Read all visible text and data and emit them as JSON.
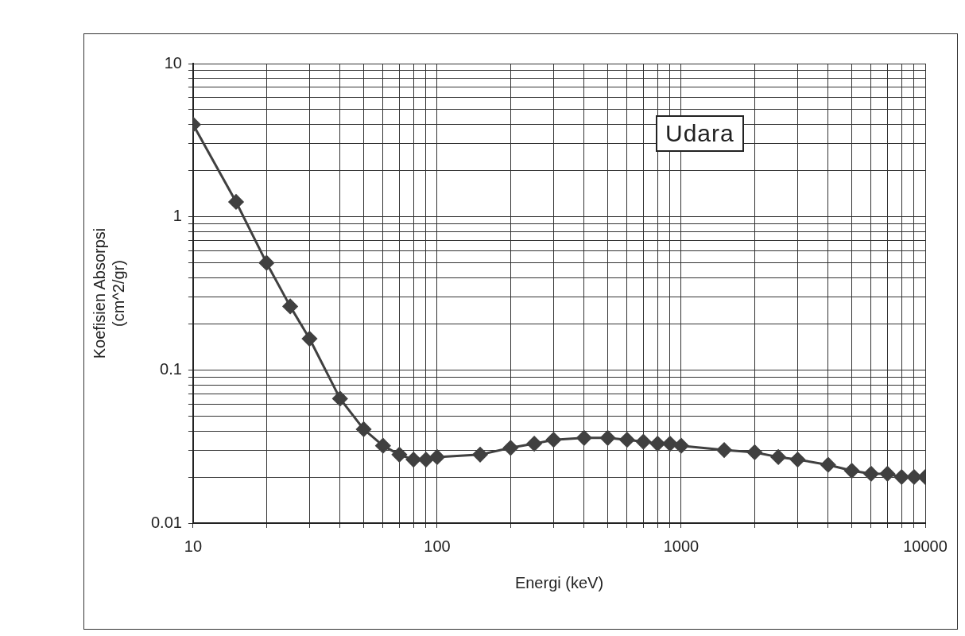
{
  "chart_data": {
    "type": "line",
    "xlabel": "Energi (keV)",
    "ylabel": "Koefisien Absorpsi\n(cm^2/gr)",
    "annotations": [
      "Udara"
    ],
    "x": [
      10,
      15,
      20,
      25,
      30,
      40,
      50,
      60,
      70,
      80,
      90,
      100,
      150,
      200,
      250,
      300,
      400,
      500,
      600,
      700,
      800,
      900,
      1000,
      1500,
      2000,
      2500,
      3000,
      4000,
      5000,
      6000,
      7000,
      8000,
      9000,
      10000
    ],
    "series": [
      {
        "color": "#404040",
        "values": [
          4.0,
          1.25,
          0.5,
          0.26,
          0.16,
          0.065,
          0.041,
          0.032,
          0.028,
          0.026,
          0.026,
          0.027,
          0.028,
          0.031,
          0.033,
          0.035,
          0.036,
          0.036,
          0.035,
          0.034,
          0.033,
          0.033,
          0.032,
          0.03,
          0.029,
          0.027,
          0.026,
          0.024,
          0.022,
          0.021,
          0.021,
          0.02,
          0.02,
          0.02
        ]
      }
    ],
    "log": "xy",
    "xlim": [
      10,
      10000
    ],
    "ylim": [
      0.01,
      10
    ],
    "xticks": [
      10,
      {
        "value": 20,
        "label": null
      },
      {
        "value": 30,
        "label": null
      },
      {
        "value": 40,
        "label": null
      },
      {
        "value": 50,
        "label": null
      },
      {
        "value": 60,
        "label": null
      },
      {
        "value": 70,
        "label": null
      },
      {
        "value": 80,
        "label": null
      },
      {
        "value": 90,
        "label": null
      },
      100,
      {
        "value": 200,
        "label": null
      },
      {
        "value": 300,
        "label": null
      },
      {
        "value": 400,
        "label": null
      },
      {
        "value": 500,
        "label": null
      },
      {
        "value": 600,
        "label": null
      },
      {
        "value": 700,
        "label": null
      },
      {
        "value": 800,
        "label": null
      },
      {
        "value": 900,
        "label": null
      },
      1000,
      {
        "value": 2000,
        "label": null
      },
      {
        "value": 3000,
        "label": null
      },
      {
        "value": 4000,
        "label": null
      },
      {
        "value": 5000,
        "label": null
      },
      {
        "value": 6000,
        "label": null
      },
      {
        "value": 7000,
        "label": null
      },
      {
        "value": 8000,
        "label": null
      },
      {
        "value": 9000,
        "label": null
      },
      10000
    ],
    "yticks": [
      0.01,
      {
        "value": 0.02,
        "label": null
      },
      {
        "value": 0.03,
        "label": null
      },
      {
        "value": 0.04,
        "label": null
      },
      {
        "value": 0.05,
        "label": null
      },
      {
        "value": 0.06,
        "label": null
      },
      {
        "value": 0.07,
        "label": null
      },
      {
        "value": 0.08,
        "label": null
      },
      {
        "value": 0.09,
        "label": null
      },
      0.1,
      {
        "value": 0.2,
        "label": null
      },
      {
        "value": 0.3,
        "label": null
      },
      {
        "value": 0.4,
        "label": null
      },
      {
        "value": 0.5,
        "label": null
      },
      {
        "value": 0.6,
        "label": null
      },
      {
        "value": 0.7,
        "label": null
      },
      {
        "value": 0.8,
        "label": null
      },
      {
        "value": 0.9,
        "label": null
      },
      1,
      {
        "value": 2,
        "label": null
      },
      {
        "value": 3,
        "label": null
      },
      {
        "value": 4,
        "label": null
      },
      {
        "value": 5,
        "label": null
      },
      {
        "value": 6,
        "label": null
      },
      {
        "value": 7,
        "label": null
      },
      {
        "value": 8,
        "label": null
      },
      {
        "value": 9,
        "label": null
      },
      10
    ],
    "grid": true,
    "legend": false,
    "marker": "diamond",
    "line_style": "solid"
  }
}
